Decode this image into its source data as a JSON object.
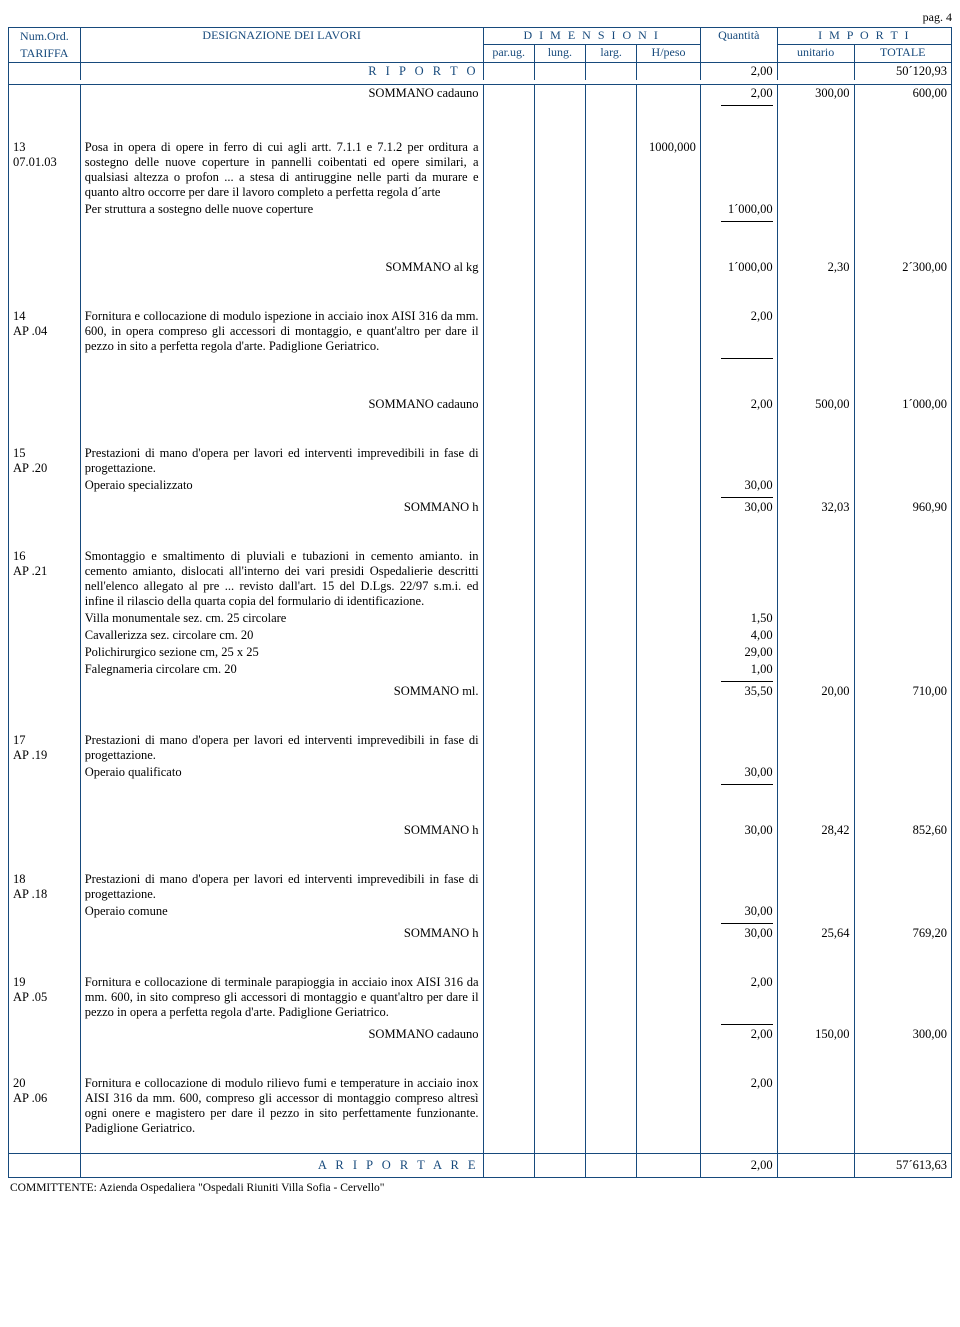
{
  "page_number": "pag. 4",
  "brand_color": "#174a7c",
  "header": {
    "num_ord": "Num.Ord.",
    "tariffa": "TARIFFA",
    "designazione": "DESIGNAZIONE DEI LAVORI",
    "dimensioni": "D I M E N S I O N I",
    "quantita": "Quantità",
    "importi": "I M P O R T I",
    "par_ug": "par.ug.",
    "lung": "lung.",
    "larg": "larg.",
    "h_peso": "H/peso",
    "unitario": "unitario",
    "totale": "TOTALE"
  },
  "riporto": {
    "label": "R I P O R T O",
    "qty": "2,00",
    "totale": "50´120,93"
  },
  "a_riportare": {
    "label": "A   R I P O R T A R E",
    "qty": "2,00",
    "totale": "57´613,63"
  },
  "committente": "COMMITTENTE: Azienda Ospedaliera \"Ospedali Riuniti Villa Sofia - Cervello\"",
  "rows": [
    {
      "type": "sommano",
      "label": "SOMMANO cadauno",
      "qty": "2,00",
      "unit": "300,00",
      "tot": "600,00",
      "tick": true
    },
    {
      "type": "item",
      "num": "13",
      "code": "07.01.03",
      "desc": "Posa in opera di opere in ferro di cui agli artt. 7.1.1 e 7.1.2 per orditura a sostegno delle nuove coperture in pannelli coibentati ed opere similari, a qualsiasi altezza o profon ... a stesa di antiruggine nelle parti da murare e quanto altro occorre per dare il lavoro completo a perfetta regola d´arte",
      "desc2": "Per struttura a sostegno delle nuove coperture",
      "h_peso": "1000,000",
      "qty": "1´000,00"
    },
    {
      "type": "tick"
    },
    {
      "type": "space3"
    },
    {
      "type": "sommano",
      "label": "SOMMANO al kg",
      "qty": "1´000,00",
      "unit": "2,30",
      "tot": "2´300,00"
    },
    {
      "type": "item",
      "num": "14",
      "code": "AP .04",
      "desc": "Fornitura e collocazione di modulo ispezione in acciaio inox AISI 316 da mm. 600, in opera compreso gli accessori di montaggio, e quant'altro per dare il pezzo in sito a perfetta regola d'arte. Padiglione Geriatrico.",
      "qty": "2,00"
    },
    {
      "type": "tick"
    },
    {
      "type": "space3"
    },
    {
      "type": "sommano",
      "label": "SOMMANO cadauno",
      "qty": "2,00",
      "unit": "500,00",
      "tot": "1´000,00"
    },
    {
      "type": "item",
      "num": "15",
      "code": "AP .20",
      "desc": "  Prestazioni di mano d'opera per lavori ed interventi imprevedibili in fase di progettazione.",
      "desc2": "Operaio specializzato",
      "qty": "30,00"
    },
    {
      "type": "tick"
    },
    {
      "type": "sommano",
      "label": "SOMMANO h",
      "qty": "30,00",
      "unit": "32,03",
      "tot": "960,90"
    },
    {
      "type": "item",
      "num": "16",
      "code": "AP .21",
      "desc": "Smontaggio e smaltimento di  pluviali e tubazioni in cemento amianto. in cemento amianto, dislocati all'interno dei vari presidi Ospedalierie descritti nell'elenco allegato al pre ... revisto dall'art. 15 del D.Lgs. 22/97 s.m.i. ed infine il rilascio della quarta copia del formulario di identificazione."
    },
    {
      "type": "detail",
      "desc": "Villa monumentale sez. cm. 25 circolare",
      "qty": "1,50"
    },
    {
      "type": "detail",
      "desc": "Cavallerizza sez. circolare cm. 20",
      "qty": "4,00"
    },
    {
      "type": "detail",
      "desc": "Polichirurgico sezione cm, 25 x 25",
      "qty": "29,00"
    },
    {
      "type": "detail",
      "desc": "Falegnameria circolare cm. 20",
      "qty": "1,00"
    },
    {
      "type": "tick"
    },
    {
      "type": "sommano",
      "label": "SOMMANO ml.",
      "qty": "35,50",
      "unit": "20,00",
      "tot": "710,00"
    },
    {
      "type": "item",
      "num": "17",
      "code": "AP .19",
      "desc": "  Prestazioni di mano d'opera per lavori ed interventi imprevedibili in fase di progettazione.",
      "desc2": "Operaio qualificato",
      "qty": "30,00"
    },
    {
      "type": "tick"
    },
    {
      "type": "space3"
    },
    {
      "type": "sommano",
      "label": "SOMMANO h",
      "qty": "30,00",
      "unit": "28,42",
      "tot": "852,60"
    },
    {
      "type": "item",
      "num": "18",
      "code": "AP .18",
      "desc": "  Prestazioni di mano d'opera per lavori ed interventi imprevedibili in fase di progettazione.",
      "desc2": "Operaio comune",
      "qty": "30,00"
    },
    {
      "type": "tick"
    },
    {
      "type": "sommano",
      "label": "SOMMANO h",
      "qty": "30,00",
      "unit": "25,64",
      "tot": "769,20"
    },
    {
      "type": "item",
      "num": "19",
      "code": "AP .05",
      "desc": "Fornitura e collocazione di terminale parapioggia in acciaio inox AISI 316 da mm. 600, in sito compreso gli accessori di montaggio e quant'altro per dare il pezzo in opera a perfetta regola d'arte. Padiglione Geriatrico.",
      "qty": "2,00"
    },
    {
      "type": "tick"
    },
    {
      "type": "sommano",
      "label": "SOMMANO cadauno",
      "qty": "2,00",
      "unit": "150,00",
      "tot": "300,00"
    },
    {
      "type": "item",
      "num": "20",
      "code": "AP .06",
      "desc": "Fornitura e collocazione di modulo rilievo fumi e temperature in acciaio inox AISI 316 da mm. 600, compreso gli accessor di montaggio  compreso altresì ogni onere e magistero per dare il pezzo in sito perfettamente funzionante. Padiglione Geriatrico.",
      "qty": "2,00"
    },
    {
      "type": "space2"
    }
  ]
}
